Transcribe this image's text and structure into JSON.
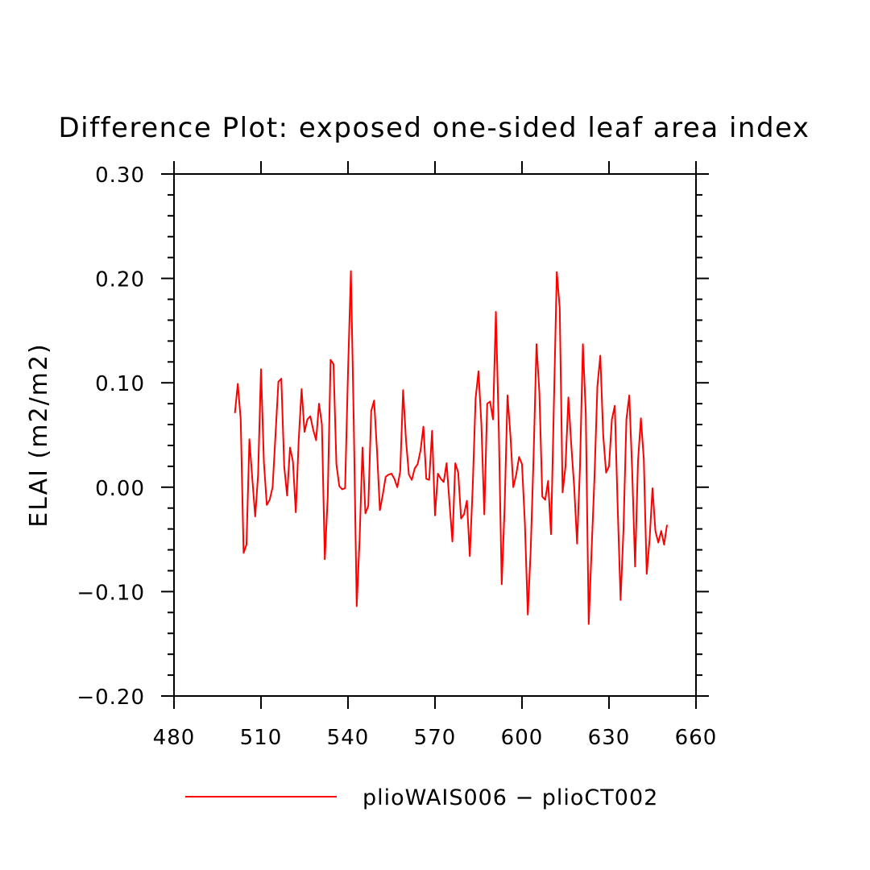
{
  "chart_data": {
    "type": "line",
    "title": "Difference Plot: exposed one-sided leaf area index",
    "xlabel": "",
    "ylabel": "ELAI  (m2/m2)",
    "xlim": [
      480,
      660
    ],
    "ylim": [
      -0.2,
      0.3
    ],
    "x_ticks": [
      480,
      510,
      540,
      570,
      600,
      630,
      660
    ],
    "x_tick_labels": [
      "480",
      "510",
      "540",
      "570",
      "600",
      "630",
      "660"
    ],
    "y_ticks": [
      -0.2,
      -0.1,
      0.0,
      0.1,
      0.2,
      0.3
    ],
    "y_tick_labels": [
      "−0.20",
      "−0.10",
      "0.00",
      "0.10",
      "0.20",
      "0.30"
    ],
    "grid": false,
    "legend_position": "bottom",
    "series": [
      {
        "name": "plioWAIS006 − plioCT002",
        "color": "#ff0000",
        "x": [
          501,
          502,
          503,
          504,
          505,
          506,
          507,
          508,
          509,
          510,
          511,
          512,
          513,
          514,
          515,
          516,
          517,
          518,
          519,
          520,
          521,
          522,
          523,
          524,
          525,
          526,
          527,
          528,
          529,
          530,
          531,
          532,
          533,
          534,
          535,
          536,
          537,
          538,
          539,
          540,
          541,
          542,
          543,
          544,
          545,
          546,
          547,
          548,
          549,
          550,
          551,
          552,
          553,
          554,
          555,
          556,
          557,
          558,
          559,
          560,
          561,
          562,
          563,
          564,
          565,
          566,
          567,
          568,
          569,
          570,
          571,
          572,
          573,
          574,
          575,
          576,
          577,
          578,
          579,
          580,
          581,
          582,
          583,
          584,
          585,
          586,
          587,
          588,
          589,
          590,
          591,
          592,
          593,
          594,
          595,
          596,
          597,
          598,
          599,
          600,
          601,
          602,
          603,
          604,
          605,
          606,
          607,
          608,
          609,
          610,
          611,
          612,
          613,
          614,
          615,
          616,
          617,
          618,
          619,
          620,
          621,
          622,
          623,
          624,
          625,
          626,
          627,
          628,
          629,
          630,
          631,
          632,
          633,
          634,
          635,
          636,
          637,
          638,
          639,
          640,
          641,
          642,
          643,
          644,
          645,
          646,
          647,
          648,
          649,
          650
        ],
        "values": [
          0.071,
          0.099,
          0.065,
          -0.063,
          -0.055,
          0.046,
          0.008,
          -0.028,
          0.012,
          0.113,
          0.024,
          -0.017,
          -0.012,
          0.0,
          0.05,
          0.101,
          0.104,
          0.02,
          -0.008,
          0.038,
          0.025,
          -0.024,
          0.045,
          0.094,
          0.053,
          0.065,
          0.068,
          0.055,
          0.045,
          0.08,
          0.06,
          -0.069,
          -0.01,
          0.122,
          0.118,
          0.022,
          0.001,
          -0.002,
          -0.001,
          0.11,
          0.207,
          0.06,
          -0.114,
          -0.05,
          0.038,
          -0.025,
          -0.018,
          0.073,
          0.083,
          0.035,
          -0.022,
          -0.007,
          0.01,
          0.012,
          0.013,
          0.008,
          0.0,
          0.015,
          0.093,
          0.045,
          0.012,
          0.007,
          0.018,
          0.022,
          0.035,
          0.058,
          0.008,
          0.007,
          0.054,
          -0.027,
          0.013,
          0.008,
          0.005,
          0.023,
          -0.015,
          -0.052,
          0.023,
          0.014,
          -0.03,
          -0.026,
          -0.013,
          -0.066,
          0.0,
          0.085,
          0.111,
          0.06,
          -0.026,
          0.08,
          0.082,
          0.065,
          0.168,
          0.055,
          -0.093,
          -0.02,
          0.088,
          0.05,
          0.0,
          0.012,
          0.029,
          0.022,
          -0.035,
          -0.122,
          -0.06,
          0.03,
          0.137,
          0.09,
          -0.009,
          -0.012,
          0.006,
          -0.045,
          0.08,
          0.206,
          0.172,
          -0.005,
          0.02,
          0.086,
          0.04,
          0.0,
          -0.054,
          0.02,
          0.137,
          0.07,
          -0.131,
          -0.06,
          0.01,
          0.097,
          0.126,
          0.05,
          0.014,
          0.02,
          0.065,
          0.078,
          -0.02,
          -0.108,
          -0.04,
          0.065,
          0.088,
          0.015,
          -0.076,
          0.025,
          0.066,
          0.027,
          -0.083,
          -0.05,
          -0.001,
          -0.042,
          -0.053,
          -0.042,
          -0.055,
          -0.036
        ]
      }
    ]
  }
}
